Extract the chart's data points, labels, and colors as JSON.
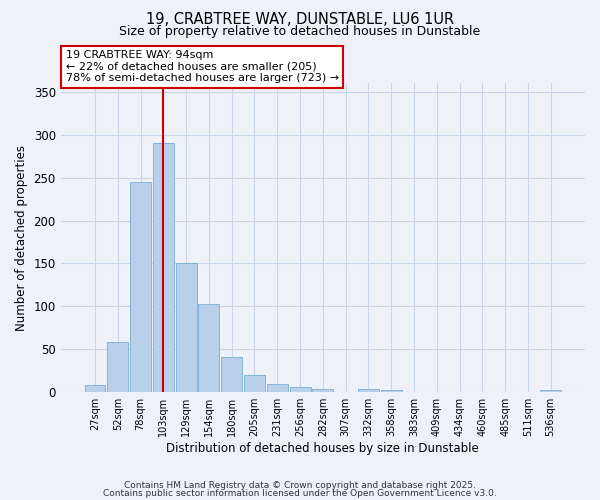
{
  "title": "19, CRABTREE WAY, DUNSTABLE, LU6 1UR",
  "subtitle": "Size of property relative to detached houses in Dunstable",
  "xlabel": "Distribution of detached houses by size in Dunstable",
  "ylabel": "Number of detached properties",
  "categories": [
    "27sqm",
    "52sqm",
    "78sqm",
    "103sqm",
    "129sqm",
    "154sqm",
    "180sqm",
    "205sqm",
    "231sqm",
    "256sqm",
    "282sqm",
    "307sqm",
    "332sqm",
    "358sqm",
    "383sqm",
    "409sqm",
    "434sqm",
    "460sqm",
    "485sqm",
    "511sqm",
    "536sqm"
  ],
  "values": [
    8,
    58,
    245,
    290,
    150,
    103,
    41,
    20,
    10,
    6,
    4,
    0,
    4,
    2,
    0,
    0,
    0,
    0,
    0,
    0,
    2
  ],
  "bar_color": "#b8d0ea",
  "bar_edge_color": "#7aaed6",
  "grid_color": "#c8d4e8",
  "background_color": "#eef2f8",
  "marker_bin_index": 3,
  "marker_label_line1": "19 CRABTREE WAY: 94sqm",
  "marker_label_line2": "← 22% of detached houses are smaller (205)",
  "marker_label_line3": "78% of semi-detached houses are larger (723) →",
  "annotation_box_color": "#ffffff",
  "annotation_border_color": "#cc0000",
  "red_line_color": "#cc0000",
  "footer_line1": "Contains HM Land Registry data © Crown copyright and database right 2025.",
  "footer_line2": "Contains public sector information licensed under the Open Government Licence v3.0.",
  "ylim": [
    0,
    360
  ],
  "yticks": [
    0,
    50,
    100,
    150,
    200,
    250,
    300,
    350
  ]
}
